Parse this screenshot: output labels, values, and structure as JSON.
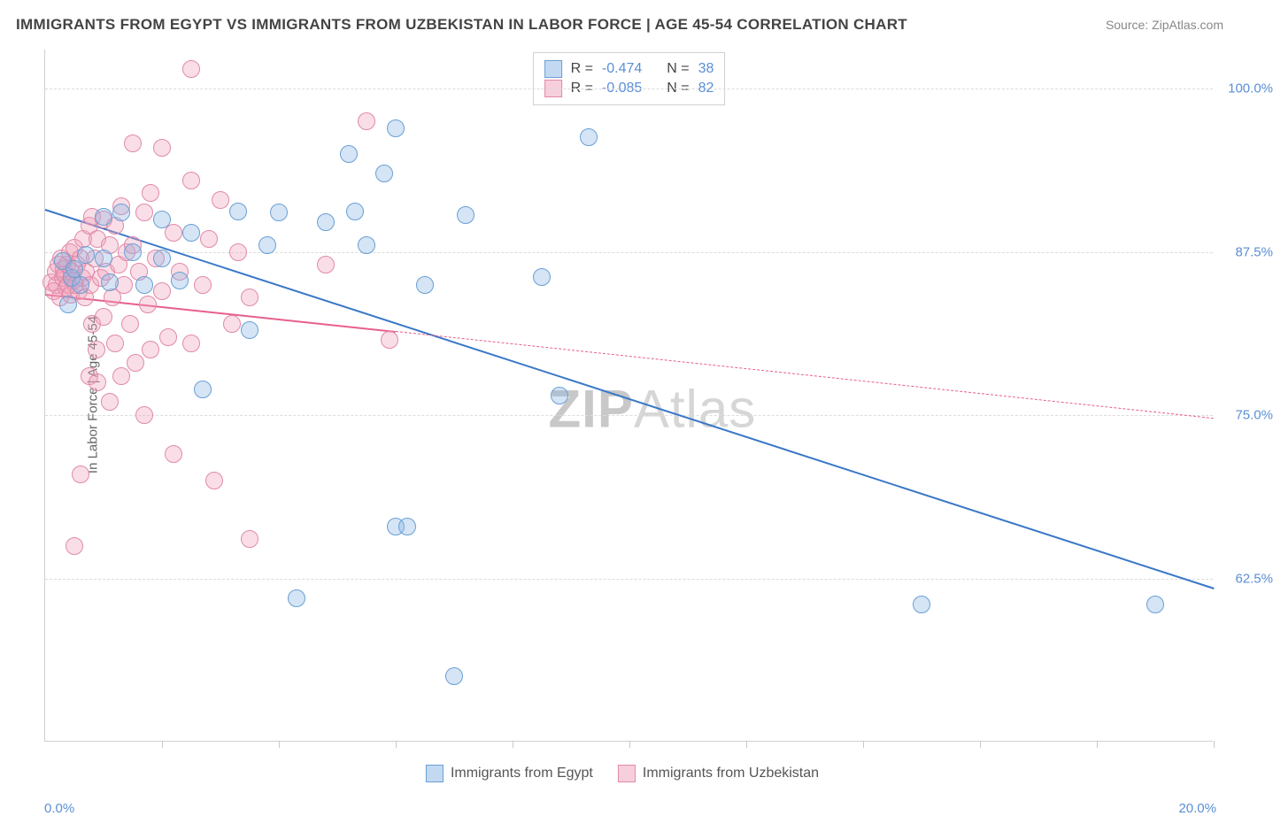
{
  "title": "IMMIGRANTS FROM EGYPT VS IMMIGRANTS FROM UZBEKISTAN IN LABOR FORCE | AGE 45-54 CORRELATION CHART",
  "source": "Source: ZipAtlas.com",
  "watermark": "ZIPAtlas",
  "ylabel": "In Labor Force | Age 45-54",
  "chart": {
    "type": "scatter",
    "background_color": "#ffffff",
    "grid_color": "#dcdcdc",
    "axis_color": "#d0d0d0",
    "label_color": "#666666",
    "tick_color": "#5a8fd6",
    "xlim": [
      0,
      20
    ],
    "ylim": [
      50,
      103
    ],
    "xtick_positions": [
      0,
      2,
      4,
      6,
      8,
      10,
      12,
      14,
      16,
      18,
      20
    ],
    "xtick_labels": {
      "0": "0.0%",
      "20": "20.0%"
    },
    "ytick_positions": [
      62.5,
      75.0,
      87.5,
      100.0
    ],
    "ytick_labels": [
      "62.5%",
      "75.0%",
      "87.5%",
      "100.0%"
    ],
    "point_radius": 10,
    "title_fontsize": 17,
    "tick_fontsize": 15,
    "label_fontsize": 15,
    "legend_fontsize": 16,
    "series": [
      {
        "name": "Immigrants from Egypt",
        "color_fill": "rgba(135,180,230,0.35)",
        "color_border": "#6a9fd4",
        "color_line": "#3a78c8",
        "R": "-0.474",
        "N": "38",
        "regression": {
          "x1": 0,
          "y1": 90.8,
          "x2": 20,
          "y2": 61.8,
          "dashed_after_data": false
        },
        "points": [
          [
            0.3,
            86.8
          ],
          [
            0.4,
            83.5
          ],
          [
            0.45,
            85.5
          ],
          [
            0.5,
            86.2
          ],
          [
            0.6,
            85.0
          ],
          [
            0.7,
            87.3
          ],
          [
            1.0,
            90.2
          ],
          [
            1.0,
            87.0
          ],
          [
            1.1,
            85.2
          ],
          [
            1.3,
            90.5
          ],
          [
            1.5,
            87.5
          ],
          [
            1.7,
            85.0
          ],
          [
            2.0,
            90.0
          ],
          [
            2.0,
            87.0
          ],
          [
            2.3,
            85.3
          ],
          [
            2.5,
            89.0
          ],
          [
            2.7,
            77.0
          ],
          [
            3.3,
            90.6
          ],
          [
            3.5,
            81.5
          ],
          [
            3.8,
            88.0
          ],
          [
            4.0,
            90.5
          ],
          [
            4.3,
            61.0
          ],
          [
            4.8,
            89.8
          ],
          [
            5.2,
            95.0
          ],
          [
            5.3,
            90.6
          ],
          [
            5.5,
            88.0
          ],
          [
            5.8,
            93.5
          ],
          [
            6.0,
            97.0
          ],
          [
            6.0,
            66.5
          ],
          [
            6.2,
            66.5
          ],
          [
            6.5,
            85.0
          ],
          [
            7.0,
            55.0
          ],
          [
            7.2,
            90.3
          ],
          [
            8.5,
            85.6
          ],
          [
            8.8,
            76.5
          ],
          [
            9.3,
            96.3
          ],
          [
            15.0,
            60.5
          ],
          [
            19.0,
            60.5
          ]
        ]
      },
      {
        "name": "Immigrants from Uzbekistan",
        "color_fill": "rgba(240,160,185,0.35)",
        "color_border": "#e08aa8",
        "color_line": "#e85f8a",
        "R": "-0.085",
        "N": "82",
        "regression": {
          "x1": 0,
          "y1": 84.3,
          "x2": 20,
          "y2": 74.8,
          "dashed_after_x": 6.0
        },
        "points": [
          [
            0.1,
            85.2
          ],
          [
            0.15,
            84.5
          ],
          [
            0.18,
            86.0
          ],
          [
            0.2,
            85.0
          ],
          [
            0.22,
            86.5
          ],
          [
            0.25,
            84.0
          ],
          [
            0.28,
            87.0
          ],
          [
            0.3,
            85.5
          ],
          [
            0.32,
            86.2
          ],
          [
            0.34,
            85.8
          ],
          [
            0.36,
            84.8
          ],
          [
            0.38,
            86.5
          ],
          [
            0.4,
            85.0
          ],
          [
            0.42,
            87.5
          ],
          [
            0.44,
            84.2
          ],
          [
            0.46,
            86.0
          ],
          [
            0.48,
            85.3
          ],
          [
            0.5,
            87.8
          ],
          [
            0.5,
            65.0
          ],
          [
            0.52,
            85.0
          ],
          [
            0.55,
            86.5
          ],
          [
            0.58,
            84.5
          ],
          [
            0.6,
            87.0
          ],
          [
            0.6,
            70.5
          ],
          [
            0.63,
            85.5
          ],
          [
            0.65,
            88.5
          ],
          [
            0.68,
            84.0
          ],
          [
            0.7,
            86.0
          ],
          [
            0.75,
            89.5
          ],
          [
            0.75,
            78.0
          ],
          [
            0.78,
            85.0
          ],
          [
            0.8,
            90.2
          ],
          [
            0.8,
            82.0
          ],
          [
            0.85,
            87.0
          ],
          [
            0.88,
            80.0
          ],
          [
            0.9,
            88.5
          ],
          [
            0.9,
            77.5
          ],
          [
            0.95,
            85.5
          ],
          [
            1.0,
            90.0
          ],
          [
            1.0,
            82.5
          ],
          [
            1.05,
            86.0
          ],
          [
            1.1,
            88.0
          ],
          [
            1.1,
            76.0
          ],
          [
            1.15,
            84.0
          ],
          [
            1.2,
            89.5
          ],
          [
            1.2,
            80.5
          ],
          [
            1.25,
            86.5
          ],
          [
            1.3,
            91.0
          ],
          [
            1.3,
            78.0
          ],
          [
            1.35,
            85.0
          ],
          [
            1.4,
            87.5
          ],
          [
            1.45,
            82.0
          ],
          [
            1.5,
            95.8
          ],
          [
            1.5,
            88.0
          ],
          [
            1.55,
            79.0
          ],
          [
            1.6,
            86.0
          ],
          [
            1.7,
            90.5
          ],
          [
            1.7,
            75.0
          ],
          [
            1.75,
            83.5
          ],
          [
            1.8,
            92.0
          ],
          [
            1.8,
            80.0
          ],
          [
            1.9,
            87.0
          ],
          [
            2.0,
            95.5
          ],
          [
            2.0,
            84.5
          ],
          [
            2.1,
            81.0
          ],
          [
            2.2,
            89.0
          ],
          [
            2.2,
            72.0
          ],
          [
            2.3,
            86.0
          ],
          [
            2.5,
            93.0
          ],
          [
            2.5,
            80.5
          ],
          [
            2.5,
            101.5
          ],
          [
            2.7,
            85.0
          ],
          [
            2.8,
            88.5
          ],
          [
            2.9,
            70.0
          ],
          [
            3.0,
            91.5
          ],
          [
            3.2,
            82.0
          ],
          [
            3.3,
            87.5
          ],
          [
            3.5,
            65.5
          ],
          [
            3.5,
            84.0
          ],
          [
            4.8,
            86.5
          ],
          [
            5.5,
            97.5
          ],
          [
            5.9,
            80.8
          ]
        ]
      }
    ]
  }
}
